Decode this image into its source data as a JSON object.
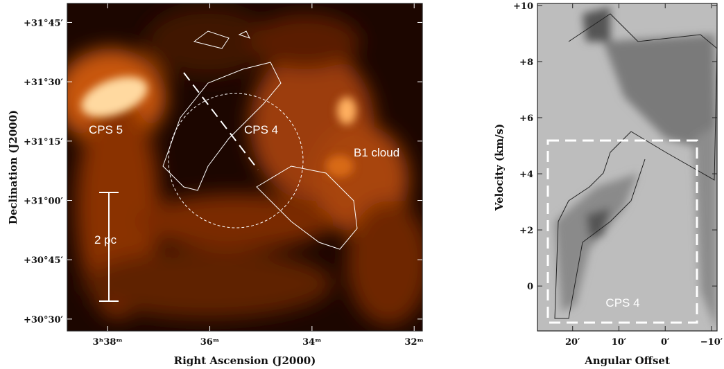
{
  "chart_data": [
    {
      "type": "image",
      "xlabel": "Right Ascension (J2000)",
      "ylabel": "Declination (J2000)",
      "xlim": [
        38.79,
        31.84
      ],
      "ylim": [
        30.45,
        31.83
      ],
      "xticks": [
        {
          "value": 38,
          "label": "3ʰ38ᵐ"
        },
        {
          "value": 36,
          "label": "36ᵐ"
        },
        {
          "value": 34,
          "label": "34ᵐ"
        },
        {
          "value": 32,
          "label": "32ᵐ"
        }
      ],
      "yticks": [
        {
          "value": 31.75,
          "label": "+31°45′"
        },
        {
          "value": 31.5,
          "label": "+31°30′"
        },
        {
          "value": 31.25,
          "label": "+31°15′"
        },
        {
          "value": 31,
          "label": "+31°00′"
        },
        {
          "value": 30.75,
          "label": "+30°45′"
        },
        {
          "value": 30.5,
          "label": "+30°30′"
        }
      ],
      "annotations": [
        "CPS 5",
        "CPS 4",
        "B1 cloud",
        "2 pc"
      ]
    },
    {
      "type": "image",
      "xlabel": "Angular Offset",
      "ylabel": "Velocity (km/s)",
      "xlim": [
        27.6,
        -11.2
      ],
      "ylim": [
        -1.6,
        10.07
      ],
      "xticks": [
        {
          "value": 20,
          "label": "20′"
        },
        {
          "value": 10,
          "label": "10′"
        },
        {
          "value": 0,
          "label": "0′"
        },
        {
          "value": -10,
          "label": "−10′"
        }
      ],
      "yticks": [
        {
          "value": 10,
          "label": "+10"
        },
        {
          "value": 8,
          "label": "+8"
        },
        {
          "value": 6,
          "label": "+6"
        },
        {
          "value": 4,
          "label": "+4"
        },
        {
          "value": 2,
          "label": "+2"
        },
        0
      ],
      "annotations": [
        "CPS 4"
      ]
    }
  ]
}
